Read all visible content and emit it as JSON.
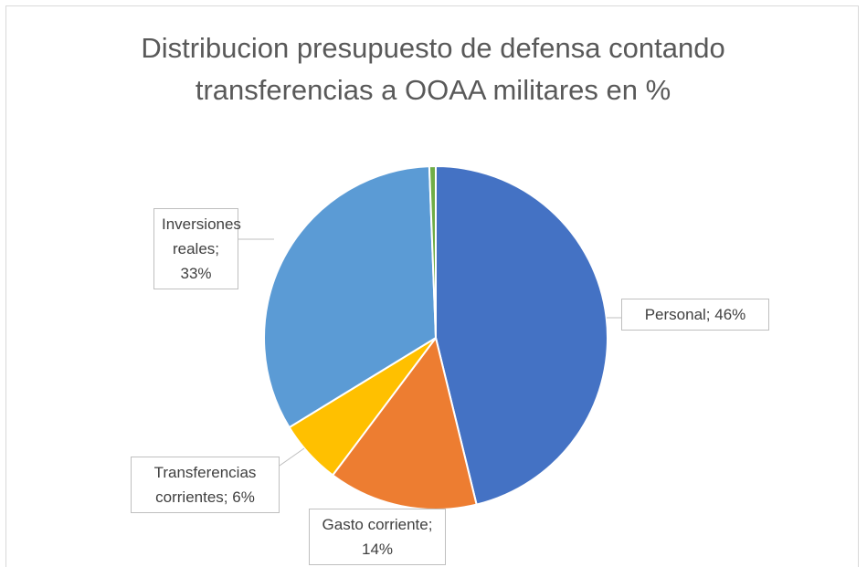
{
  "chart_data": {
    "type": "pie",
    "title": "Distribucion presupuesto de defensa contando transferencias a  OOAA militares en %",
    "categories": [
      "Personal",
      "Gasto corriente",
      "Transferencias corrientes",
      "Inversiones reales",
      null
    ],
    "values": [
      46,
      14,
      6,
      33,
      0.6
    ],
    "value_labels": [
      "Personal; 46%",
      "Gasto corriente; 14%",
      "Transferencias corrientes; 6%",
      "Inversiones reales; 33%",
      null
    ],
    "colors": [
      "#4472c4",
      "#ed7d31",
      "#ffc000",
      "#5b9bd5",
      "#70ad47"
    ]
  }
}
